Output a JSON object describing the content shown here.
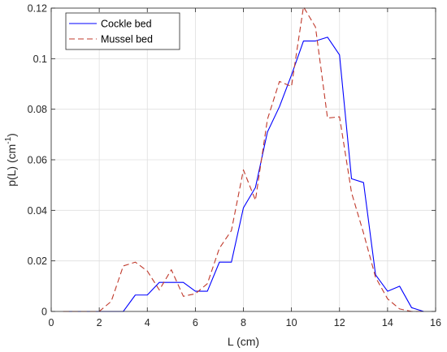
{
  "chart_data": {
    "type": "line",
    "xlabel": "L (cm)",
    "ylabel": "p(L) (cm",
    "ylabel_sup": "-1",
    "ylabel_end": ")",
    "xlim": [
      0,
      16
    ],
    "ylim": [
      0,
      0.12
    ],
    "xticks": [
      0,
      2,
      4,
      6,
      8,
      10,
      12,
      14,
      16
    ],
    "xtick_labels": [
      "0",
      "2",
      "4",
      "6",
      "8",
      "10",
      "12",
      "14",
      "16"
    ],
    "yticks": [
      0,
      0.02,
      0.04,
      0.06,
      0.08,
      0.1,
      0.12
    ],
    "ytick_labels": [
      "0",
      "0.02",
      "0.04",
      "0.06",
      "0.08",
      "0.1",
      "0.12"
    ],
    "grid": true,
    "legend_position": "top-left",
    "series": [
      {
        "name": "Cockle bed",
        "color": "#0000ff",
        "style": "solid",
        "x": [
          0.5,
          1,
          1.5,
          2,
          2.5,
          3,
          3.5,
          4,
          4.5,
          5,
          5.5,
          6,
          6.5,
          7,
          7.5,
          8,
          8.5,
          9,
          9.5,
          10,
          10.5,
          11,
          11.5,
          12,
          12.5,
          13,
          13.5,
          14,
          14.5,
          15,
          15.5
        ],
        "y": [
          0,
          0,
          0,
          0,
          0,
          0,
          0.0065,
          0.0065,
          0.0115,
          0.0115,
          0.0115,
          0.008,
          0.008,
          0.0195,
          0.0195,
          0.041,
          0.049,
          0.071,
          0.081,
          0.0935,
          0.107,
          0.107,
          0.1085,
          0.1015,
          0.0525,
          0.051,
          0.0145,
          0.008,
          0.01,
          0.0015,
          0
        ]
      },
      {
        "name": "Mussel bed",
        "color": "#c0392b",
        "style": "dashed",
        "x": [
          0.5,
          1,
          1.5,
          2,
          2.5,
          3,
          3.5,
          4,
          4.5,
          5,
          5.5,
          6,
          6.5,
          7,
          7.5,
          8,
          8.5,
          9,
          9.5,
          10,
          10.5,
          11,
          11.5,
          12,
          12.5,
          13,
          13.5,
          14,
          14.5,
          15,
          15.5
        ],
        "y": [
          0,
          0,
          0,
          0,
          0.004,
          0.018,
          0.0195,
          0.016,
          0.0085,
          0.0165,
          0.006,
          0.007,
          0.011,
          0.025,
          0.032,
          0.056,
          0.044,
          0.076,
          0.091,
          0.089,
          0.1205,
          0.1125,
          0.0765,
          0.077,
          0.047,
          0.031,
          0.0135,
          0.005,
          0.001,
          0,
          0
        ]
      }
    ]
  }
}
